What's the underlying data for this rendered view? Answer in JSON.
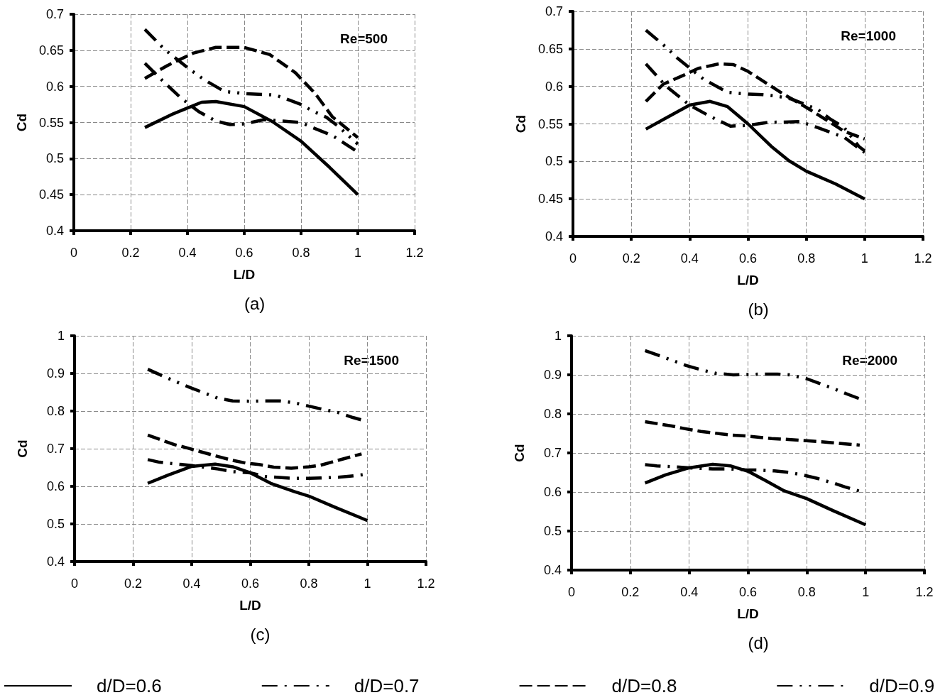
{
  "chart_data": [
    {
      "type": "line",
      "title": "(a)",
      "xlabel": "L/D",
      "ylabel": "Cd",
      "annotations": [
        "Re=500"
      ],
      "xlim": [
        0,
        1.2
      ],
      "xticks": [
        0,
        0.2,
        0.4,
        0.6,
        0.8,
        1,
        1.2
      ],
      "ylim": [
        0.4,
        0.7
      ],
      "yticks": [
        0.4,
        0.45,
        0.5,
        0.55,
        0.6,
        0.65,
        0.7
      ],
      "grid": true,
      "marker": "none",
      "series": [
        {
          "color": "#000000",
          "line_style": "solid",
          "x": [
            0.25,
            0.35,
            0.45,
            0.5,
            0.6,
            0.7,
            0.8,
            0.9,
            1.0
          ],
          "values": [
            0.543,
            0.562,
            0.578,
            0.579,
            0.572,
            0.551,
            0.524,
            0.488,
            0.45
          ]
        },
        {
          "color": "#000000",
          "line_style": "dashdot",
          "x": [
            0.25,
            0.32,
            0.38,
            0.44,
            0.5,
            0.55,
            0.6,
            0.67,
            0.8,
            0.84,
            0.91,
            1.0
          ],
          "values": [
            0.632,
            0.605,
            0.583,
            0.565,
            0.552,
            0.547,
            0.548,
            0.554,
            0.55,
            0.543,
            0.532,
            0.509
          ]
        },
        {
          "color": "#000000",
          "line_style": "dashed",
          "x": [
            0.25,
            0.33,
            0.42,
            0.5,
            0.6,
            0.69,
            0.78,
            0.85,
            0.91,
            1.0
          ],
          "values": [
            0.611,
            0.629,
            0.646,
            0.654,
            0.654,
            0.644,
            0.619,
            0.59,
            0.558,
            0.529
          ]
        },
        {
          "color": "#000000",
          "line_style": "dashdotdot",
          "x": [
            0.25,
            0.32,
            0.41,
            0.46,
            0.53,
            0.6,
            0.71,
            0.8,
            0.84,
            0.89,
            0.93,
            1.0
          ],
          "values": [
            0.679,
            0.651,
            0.623,
            0.609,
            0.593,
            0.59,
            0.588,
            0.575,
            0.566,
            0.557,
            0.545,
            0.52
          ]
        }
      ]
    },
    {
      "type": "line",
      "title": "(b)",
      "xlabel": "L/D",
      "ylabel": "Cd",
      "annotations": [
        "Re=1000"
      ],
      "xlim": [
        0,
        1.2
      ],
      "xticks": [
        0,
        0.2,
        0.4,
        0.6,
        0.8,
        1,
        1.2
      ],
      "ylim": [
        0.4,
        0.7
      ],
      "yticks": [
        0.4,
        0.45,
        0.5,
        0.55,
        0.6,
        0.65,
        0.7
      ],
      "grid": true,
      "marker": "none",
      "series": [
        {
          "color": "#000000",
          "line_style": "solid",
          "x": [
            0.25,
            0.32,
            0.4,
            0.47,
            0.53,
            0.6,
            0.68,
            0.74,
            0.8,
            0.9,
            1.0
          ],
          "values": [
            0.543,
            0.558,
            0.575,
            0.58,
            0.573,
            0.55,
            0.52,
            0.501,
            0.487,
            0.47,
            0.45
          ]
        },
        {
          "color": "#000000",
          "line_style": "dashdot",
          "x": [
            0.25,
            0.32,
            0.4,
            0.47,
            0.54,
            0.6,
            0.67,
            0.78,
            0.84,
            0.93,
            1.0
          ],
          "values": [
            0.63,
            0.6,
            0.575,
            0.56,
            0.547,
            0.548,
            0.552,
            0.553,
            0.545,
            0.532,
            0.512
          ]
        },
        {
          "color": "#000000",
          "line_style": "dashed",
          "x": [
            0.25,
            0.31,
            0.38,
            0.43,
            0.5,
            0.55,
            0.6,
            0.66,
            0.72,
            0.8,
            0.87,
            0.93,
            1.0
          ],
          "values": [
            0.58,
            0.603,
            0.615,
            0.624,
            0.63,
            0.629,
            0.62,
            0.605,
            0.59,
            0.572,
            0.555,
            0.54,
            0.53
          ]
        },
        {
          "color": "#000000",
          "line_style": "dashdotdot",
          "x": [
            0.25,
            0.32,
            0.36,
            0.45,
            0.53,
            0.59,
            0.65,
            0.7,
            0.75,
            0.84,
            0.88,
            0.93,
            0.98,
            1.0
          ],
          "values": [
            0.675,
            0.652,
            0.637,
            0.609,
            0.592,
            0.59,
            0.589,
            0.587,
            0.583,
            0.569,
            0.557,
            0.545,
            0.52,
            0.514
          ]
        }
      ]
    },
    {
      "type": "line",
      "title": "(c)",
      "xlabel": "L/D",
      "ylabel": "Cd",
      "annotations": [
        "Re=1500"
      ],
      "xlim": [
        0,
        1.2
      ],
      "xticks": [
        0,
        0.2,
        0.4,
        0.6,
        0.8,
        1,
        1.2
      ],
      "ylim": [
        0.4,
        1
      ],
      "yticks": [
        0.4,
        0.5,
        0.6,
        0.7,
        0.8,
        0.9,
        1
      ],
      "grid": true,
      "marker": "none",
      "series": [
        {
          "color": "#000000",
          "line_style": "solid",
          "x": [
            0.25,
            0.32,
            0.4,
            0.48,
            0.54,
            0.6,
            0.67,
            0.75,
            0.8,
            0.89,
            1.0
          ],
          "values": [
            0.608,
            0.63,
            0.653,
            0.659,
            0.652,
            0.636,
            0.608,
            0.586,
            0.574,
            0.544,
            0.509
          ]
        },
        {
          "color": "#000000",
          "line_style": "dashdot",
          "x": [
            0.25,
            0.29,
            0.34,
            0.4,
            0.49,
            0.54,
            0.6,
            0.65,
            0.69,
            0.75,
            0.8,
            0.84,
            0.9,
            0.94,
            1.0
          ],
          "values": [
            0.671,
            0.664,
            0.66,
            0.655,
            0.646,
            0.639,
            0.636,
            0.626,
            0.624,
            0.621,
            0.621,
            0.622,
            0.624,
            0.627,
            0.632
          ]
        },
        {
          "color": "#000000",
          "line_style": "dashed",
          "x": [
            0.25,
            0.34,
            0.38,
            0.43,
            0.5,
            0.54,
            0.59,
            0.63,
            0.68,
            0.74,
            0.8,
            0.84,
            0.89,
            0.98
          ],
          "values": [
            0.736,
            0.711,
            0.703,
            0.692,
            0.677,
            0.669,
            0.661,
            0.658,
            0.651,
            0.648,
            0.652,
            0.656,
            0.667,
            0.686
          ]
        },
        {
          "color": "#000000",
          "line_style": "dashdotdot",
          "x": [
            0.25,
            0.34,
            0.39,
            0.44,
            0.49,
            0.54,
            0.6,
            0.65,
            0.7,
            0.75,
            0.84,
            0.9,
            0.95,
            1.0
          ],
          "values": [
            0.911,
            0.88,
            0.864,
            0.849,
            0.834,
            0.827,
            0.826,
            0.827,
            0.827,
            0.822,
            0.806,
            0.796,
            0.783,
            0.772
          ]
        }
      ]
    },
    {
      "type": "line",
      "title": "(d)",
      "xlabel": "L/D",
      "ylabel": "Cd",
      "annotations": [
        "Re=2000"
      ],
      "xlim": [
        0,
        1.2
      ],
      "xticks": [
        0,
        0.2,
        0.4,
        0.6,
        0.8,
        1,
        1.2
      ],
      "ylim": [
        0.4,
        1
      ],
      "yticks": [
        0.4,
        0.5,
        0.6,
        0.7,
        0.8,
        0.9,
        1
      ],
      "grid": true,
      "marker": "none",
      "legend": "bottom",
      "series": [
        {
          "name": "d/D=0.6",
          "color": "#000000",
          "line_style": "solid",
          "x": [
            0.25,
            0.32,
            0.4,
            0.48,
            0.54,
            0.6,
            0.66,
            0.72,
            0.8,
            0.89,
            1.0
          ],
          "values": [
            0.623,
            0.644,
            0.662,
            0.671,
            0.667,
            0.653,
            0.629,
            0.604,
            0.583,
            0.552,
            0.516
          ]
        },
        {
          "name": "d/D=0.7",
          "color": "#000000",
          "line_style": "dashdot",
          "x": [
            0.25,
            0.29,
            0.34,
            0.4,
            0.48,
            0.54,
            0.59,
            0.64,
            0.69,
            0.74,
            0.79,
            0.84,
            0.89,
            0.93,
            0.98
          ],
          "values": [
            0.67,
            0.667,
            0.665,
            0.662,
            0.659,
            0.659,
            0.657,
            0.656,
            0.654,
            0.65,
            0.643,
            0.634,
            0.623,
            0.613,
            0.602
          ]
        },
        {
          "name": "d/D=0.8",
          "color": "#000000",
          "line_style": "dashed",
          "x": [
            0.25,
            0.34,
            0.38,
            0.44,
            0.54,
            0.6,
            0.68,
            0.79,
            0.84,
            0.89,
            0.98
          ],
          "values": [
            0.78,
            0.769,
            0.763,
            0.755,
            0.746,
            0.743,
            0.737,
            0.732,
            0.729,
            0.726,
            0.72
          ]
        },
        {
          "name": "d/D=0.9",
          "color": "#000000",
          "line_style": "dashdotdot",
          "x": [
            0.25,
            0.34,
            0.39,
            0.44,
            0.49,
            0.55,
            0.6,
            0.65,
            0.7,
            0.74,
            0.8,
            0.84,
            0.89,
            0.94,
            1.0
          ],
          "values": [
            0.962,
            0.938,
            0.924,
            0.913,
            0.904,
            0.9,
            0.901,
            0.902,
            0.902,
            0.9,
            0.89,
            0.879,
            0.865,
            0.85,
            0.833
          ]
        }
      ]
    }
  ]
}
